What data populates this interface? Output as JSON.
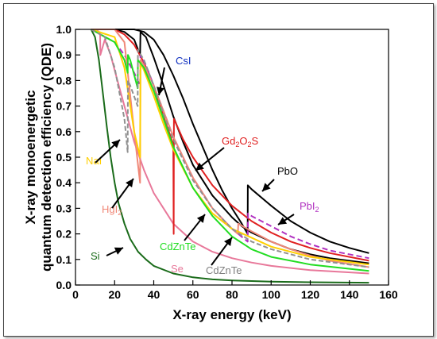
{
  "chart_data": {
    "type": "line",
    "title": "",
    "xlabel": "X-ray energy (keV)",
    "ylabel_lines": [
      "X-ray monoenergetic",
      "quantum detection efficiency (QDE)"
    ],
    "xlim": [
      0,
      160
    ],
    "ylim": [
      0,
      1.0
    ],
    "x_ticks": [
      "0",
      "20",
      "40",
      "60",
      "80",
      "100",
      "120",
      "140",
      "160"
    ],
    "y_ticks": [
      "0.0",
      "0.1",
      "0.2",
      "0.3",
      "0.4",
      "0.5",
      "0.6",
      "0.7",
      "0.8",
      "0.9",
      "1.0"
    ],
    "grid": false,
    "series": [
      {
        "name": "Si",
        "color": "#1a6b1a",
        "dash": "",
        "points": [
          [
            8,
            1.0
          ],
          [
            10,
            0.97
          ],
          [
            12,
            0.88
          ],
          [
            14,
            0.75
          ],
          [
            16,
            0.62
          ],
          [
            18,
            0.5
          ],
          [
            20,
            0.4
          ],
          [
            22,
            0.32
          ],
          [
            25,
            0.24
          ],
          [
            28,
            0.18
          ],
          [
            32,
            0.13
          ],
          [
            36,
            0.1
          ],
          [
            40,
            0.075
          ],
          [
            50,
            0.045
          ],
          [
            60,
            0.03
          ],
          [
            70,
            0.022
          ],
          [
            80,
            0.018
          ],
          [
            100,
            0.013
          ],
          [
            120,
            0.011
          ],
          [
            150,
            0.009
          ]
        ]
      },
      {
        "name": "Se",
        "color": "#e8789a",
        "dash": "",
        "points": [
          [
            8,
            1.0
          ],
          [
            11,
            1.0
          ],
          [
            12.6,
            0.98
          ],
          [
            12.7,
            0.9
          ],
          [
            15,
            0.96
          ],
          [
            18,
            0.9
          ],
          [
            20,
            0.84
          ],
          [
            25,
            0.7
          ],
          [
            30,
            0.56
          ],
          [
            35,
            0.45
          ],
          [
            40,
            0.36
          ],
          [
            50,
            0.24
          ],
          [
            60,
            0.17
          ],
          [
            70,
            0.13
          ],
          [
            80,
            0.105
          ],
          [
            90,
            0.088
          ],
          [
            100,
            0.075
          ],
          [
            120,
            0.058
          ],
          [
            150,
            0.045
          ]
        ]
      },
      {
        "name": "CsI",
        "color": "#000000",
        "dash": "",
        "points": [
          [
            8,
            1.0
          ],
          [
            20,
            1.0
          ],
          [
            25,
            0.99
          ],
          [
            30,
            0.96
          ],
          [
            33,
            0.9
          ],
          [
            33.2,
            0.99
          ],
          [
            36,
            0.97
          ],
          [
            40,
            0.89
          ],
          [
            45,
            0.78
          ],
          [
            50,
            0.66
          ],
          [
            55,
            0.56
          ],
          [
            60,
            0.47
          ],
          [
            70,
            0.35
          ],
          [
            80,
            0.265
          ],
          [
            85,
            0.23
          ],
          [
            90,
            0.205
          ],
          [
            100,
            0.17
          ],
          [
            110,
            0.14
          ],
          [
            120,
            0.12
          ],
          [
            130,
            0.105
          ],
          [
            150,
            0.085
          ]
        ]
      },
      {
        "name": "PbO",
        "color": "#000000",
        "dash": "",
        "points": [
          [
            8,
            1.0
          ],
          [
            25,
            1.0
          ],
          [
            30,
            1.0
          ],
          [
            35,
            0.99
          ],
          [
            40,
            0.96
          ],
          [
            45,
            0.9
          ],
          [
            50,
            0.82
          ],
          [
            55,
            0.73
          ],
          [
            60,
            0.63
          ],
          [
            65,
            0.54
          ],
          [
            70,
            0.45
          ],
          [
            75,
            0.37
          ],
          [
            80,
            0.3
          ],
          [
            85,
            0.24
          ],
          [
            88,
            0.2
          ],
          [
            88.1,
            0.39
          ],
          [
            90,
            0.375
          ],
          [
            100,
            0.31
          ],
          [
            110,
            0.25
          ],
          [
            120,
            0.205
          ],
          [
            130,
            0.17
          ],
          [
            140,
            0.145
          ],
          [
            150,
            0.125
          ]
        ]
      },
      {
        "name": "Gd2O2S",
        "color": "#e02020",
        "dash": "",
        "points": [
          [
            8,
            1.0
          ],
          [
            20,
            1.0
          ],
          [
            25,
            0.98
          ],
          [
            30,
            0.94
          ],
          [
            35,
            0.87
          ],
          [
            40,
            0.78
          ],
          [
            45,
            0.66
          ],
          [
            50,
            0.55
          ],
          [
            50.2,
            0.2
          ],
          [
            50.3,
            0.65
          ],
          [
            55,
            0.57
          ],
          [
            60,
            0.5
          ],
          [
            70,
            0.39
          ],
          [
            80,
            0.31
          ],
          [
            90,
            0.25
          ],
          [
            100,
            0.205
          ],
          [
            110,
            0.17
          ],
          [
            120,
            0.145
          ],
          [
            130,
            0.125
          ],
          [
            150,
            0.095
          ]
        ]
      },
      {
        "name": "PbI2",
        "color": "#b030c0",
        "dash": "7,4",
        "points": [
          [
            8,
            1.0
          ],
          [
            20,
            0.95
          ],
          [
            25,
            0.9
          ],
          [
            30,
            0.83
          ],
          [
            33,
            0.78
          ],
          [
            33.2,
            0.9
          ],
          [
            36,
            0.86
          ],
          [
            40,
            0.78
          ],
          [
            45,
            0.68
          ],
          [
            50,
            0.58
          ],
          [
            60,
            0.42
          ],
          [
            70,
            0.3
          ],
          [
            80,
            0.22
          ],
          [
            88,
            0.17
          ],
          [
            88.2,
            0.28
          ],
          [
            90,
            0.27
          ],
          [
            100,
            0.23
          ],
          [
            110,
            0.19
          ],
          [
            120,
            0.16
          ],
          [
            130,
            0.135
          ],
          [
            150,
            0.105
          ]
        ]
      },
      {
        "name": "HgI2",
        "color": "#f08878",
        "dash": "",
        "points": [
          [
            8,
            1.0
          ],
          [
            20,
            1.0
          ],
          [
            25,
            0.95
          ],
          [
            30,
            0.6
          ],
          [
            33,
            0.4
          ],
          [
            33.2,
            0.88
          ],
          [
            35,
            0.86
          ],
          [
            40,
            0.78
          ],
          [
            45,
            0.68
          ],
          [
            50,
            0.58
          ],
          [
            60,
            0.42
          ],
          [
            70,
            0.3
          ],
          [
            80,
            0.22
          ],
          [
            83,
            0.2
          ],
          [
            83.2,
            0.24
          ],
          [
            90,
            0.21
          ],
          [
            100,
            0.17
          ],
          [
            110,
            0.14
          ],
          [
            120,
            0.115
          ],
          [
            130,
            0.095
          ],
          [
            150,
            0.07
          ]
        ]
      },
      {
        "name": "NaI",
        "color": "#ffd000",
        "dash": "",
        "points": [
          [
            8,
            1.0
          ],
          [
            20,
            0.97
          ],
          [
            25,
            0.85
          ],
          [
            30,
            0.6
          ],
          [
            33,
            0.5
          ],
          [
            33.2,
            0.87
          ],
          [
            35,
            0.84
          ],
          [
            40,
            0.74
          ],
          [
            45,
            0.63
          ],
          [
            50,
            0.53
          ],
          [
            60,
            0.38
          ],
          [
            70,
            0.28
          ],
          [
            80,
            0.22
          ],
          [
            100,
            0.15
          ],
          [
            120,
            0.11
          ],
          [
            150,
            0.08
          ]
        ]
      },
      {
        "name": "CdZnTe",
        "color": "#22dd22",
        "dash": "",
        "points": [
          [
            8,
            1.0
          ],
          [
            20,
            0.95
          ],
          [
            25,
            0.88
          ],
          [
            26.7,
            0.83
          ],
          [
            26.8,
            0.9
          ],
          [
            28,
            0.88
          ],
          [
            31.8,
            0.77
          ],
          [
            31.9,
            0.88
          ],
          [
            35,
            0.85
          ],
          [
            40,
            0.76
          ],
          [
            45,
            0.65
          ],
          [
            50,
            0.54
          ],
          [
            60,
            0.38
          ],
          [
            70,
            0.27
          ],
          [
            80,
            0.19
          ],
          [
            90,
            0.14
          ],
          [
            100,
            0.11
          ],
          [
            120,
            0.08
          ],
          [
            150,
            0.055
          ]
        ]
      },
      {
        "name": "CdZnTe",
        "color": "#909090",
        "dash": "6,3",
        "points": [
          [
            8,
            1.0
          ],
          [
            15,
            0.97
          ],
          [
            20,
            0.85
          ],
          [
            25,
            0.65
          ],
          [
            26.7,
            0.52
          ],
          [
            26.8,
            0.8
          ],
          [
            28,
            0.78
          ],
          [
            31.8,
            0.7
          ],
          [
            31.9,
            0.92
          ],
          [
            35,
            0.88
          ],
          [
            40,
            0.78
          ],
          [
            45,
            0.67
          ],
          [
            50,
            0.57
          ],
          [
            60,
            0.41
          ],
          [
            70,
            0.3
          ],
          [
            80,
            0.22
          ],
          [
            90,
            0.17
          ],
          [
            100,
            0.14
          ],
          [
            120,
            0.1
          ],
          [
            150,
            0.07
          ]
        ]
      }
    ],
    "annotations": [
      {
        "series": "Si",
        "text": "Si",
        "color": "#1a6b1a"
      },
      {
        "series": "Se",
        "text": "Se",
        "color": "#e8789a"
      },
      {
        "series": "CsI",
        "text": "CsI",
        "color": "#1030c0"
      },
      {
        "series": "PbO",
        "text": "PbO",
        "color": "#000000"
      },
      {
        "series": "Gd2O2S",
        "text": "Gd",
        "sub1": "2",
        "text2": "O",
        "sub2": "2",
        "text3": "S",
        "color": "#e02020"
      },
      {
        "series": "PbI2",
        "text": "PbI",
        "sub1": "2",
        "color": "#b030c0"
      },
      {
        "series": "HgI2",
        "text": "HgI",
        "sub1": "2",
        "color": "#f08878"
      },
      {
        "series": "NaI",
        "text": "NaI",
        "color": "#ffd000"
      },
      {
        "series": "CdZnTe",
        "text": "CdZnTe",
        "color": "#22dd22"
      },
      {
        "series": "CdZnTe",
        "text": "CdZnTe",
        "color": "#808080"
      }
    ]
  }
}
